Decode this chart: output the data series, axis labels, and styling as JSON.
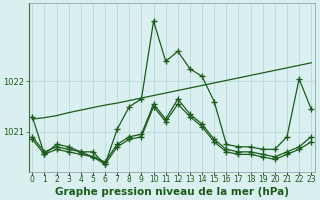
{
  "xlabel": "Graphe pression niveau de la mer (hPa)",
  "background_color": "#daf0f0",
  "grid_color": "#b8dada",
  "line_color": "#1a5c1a",
  "hours": [
    0,
    1,
    2,
    3,
    4,
    5,
    6,
    7,
    8,
    9,
    10,
    11,
    12,
    13,
    14,
    15,
    16,
    17,
    18,
    19,
    20,
    21,
    22,
    23
  ],
  "series1": [
    1021.3,
    1020.55,
    1020.75,
    1020.7,
    1020.6,
    1020.6,
    1020.35,
    1021.05,
    1021.5,
    1021.65,
    1023.2,
    1022.4,
    1022.6,
    1022.25,
    1022.1,
    1021.6,
    1020.75,
    1020.7,
    1020.7,
    1020.65,
    1020.65,
    1020.9,
    1022.05,
    1021.45
  ],
  "series2": [
    1020.85,
    1020.55,
    1020.65,
    1020.6,
    1020.55,
    1020.5,
    1020.35,
    1020.7,
    1020.85,
    1020.9,
    1021.5,
    1021.2,
    1021.55,
    1021.3,
    1021.1,
    1020.8,
    1020.6,
    1020.55,
    1020.55,
    1020.5,
    1020.45,
    1020.55,
    1020.65,
    1020.8
  ],
  "series3": [
    1020.9,
    1020.6,
    1020.7,
    1020.65,
    1020.6,
    1020.5,
    1020.4,
    1020.75,
    1020.9,
    1020.95,
    1021.55,
    1021.25,
    1021.65,
    1021.35,
    1021.15,
    1020.85,
    1020.65,
    1020.6,
    1020.6,
    1020.55,
    1020.5,
    1020.6,
    1020.7,
    1020.9
  ],
  "series4": [
    1021.25,
    1021.28,
    1021.32,
    1021.38,
    1021.43,
    1021.48,
    1021.53,
    1021.57,
    1021.62,
    1021.67,
    1021.72,
    1021.77,
    1021.82,
    1021.87,
    1021.92,
    1021.97,
    1022.02,
    1022.07,
    1022.12,
    1022.17,
    1022.22,
    1022.27,
    1022.32,
    1022.37
  ],
  "ylim_min": 1020.2,
  "ylim_max": 1023.55,
  "yticks": [
    1021,
    1022
  ],
  "tick_fontsize": 6,
  "xlabel_fontsize": 7.5
}
